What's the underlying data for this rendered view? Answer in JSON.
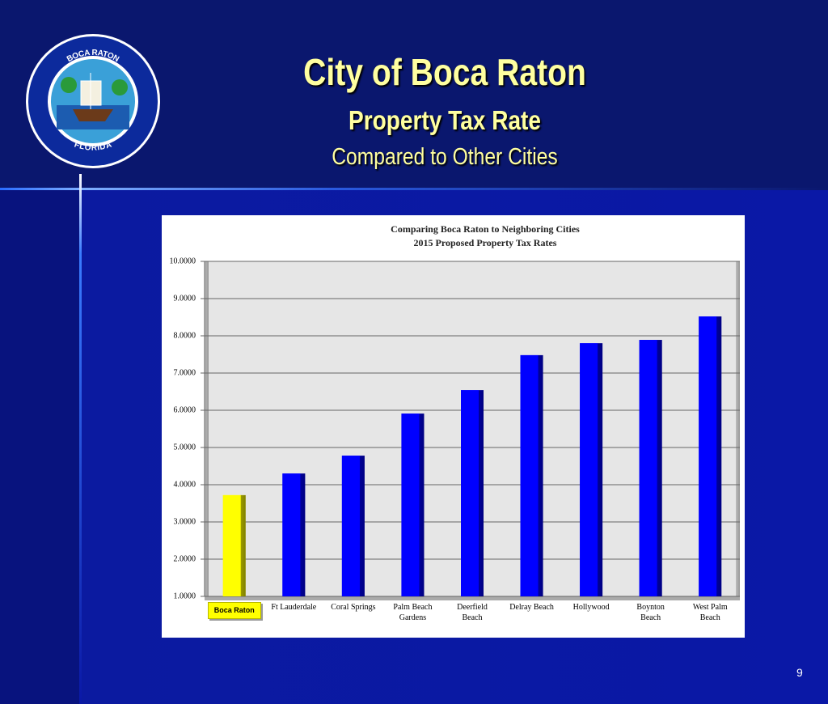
{
  "slide": {
    "title": "City of Boca Raton",
    "subtitle": "Property Tax Rate",
    "tagline": "Compared to Other Cities",
    "page_number": "9",
    "logo": {
      "top": "BOCA RATON",
      "bottom": "FLORIDA"
    }
  },
  "chart_data": {
    "type": "bar",
    "title": "Comparing Boca Raton to Neighboring Cities",
    "subtitle": "2015 Proposed Property Tax Rates",
    "categories": [
      "Boca Raton",
      "Ft Lauderdale",
      "Coral Springs",
      "Palm Beach\nGardens",
      "Deerfield\nBeach",
      "Delray Beach",
      "Hollywood",
      "Boynton\nBeach",
      "West Palm\nBeach"
    ],
    "values": [
      3.72,
      4.3,
      4.78,
      5.91,
      6.54,
      7.48,
      7.8,
      7.89,
      8.52
    ],
    "colors": [
      "#ffff00",
      "#0000ff",
      "#0000ff",
      "#0000ff",
      "#0000ff",
      "#0000ff",
      "#0000ff",
      "#0000ff",
      "#0000ff"
    ],
    "ylim": [
      1,
      10
    ],
    "yticks": [
      {
        "value": 1,
        "label": "1.0000"
      },
      {
        "value": 2,
        "label": "2.0000"
      },
      {
        "value": 3,
        "label": "3.0000"
      },
      {
        "value": 4,
        "label": "4.0000"
      },
      {
        "value": 5,
        "label": "5.0000"
      },
      {
        "value": 6,
        "label": "6.0000"
      },
      {
        "value": 7,
        "label": "7.0000"
      },
      {
        "value": 8,
        "label": "8.0000"
      },
      {
        "value": 9,
        "label": "9.0000"
      },
      {
        "value": 10,
        "label": "10.0000"
      }
    ],
    "grid": true
  }
}
